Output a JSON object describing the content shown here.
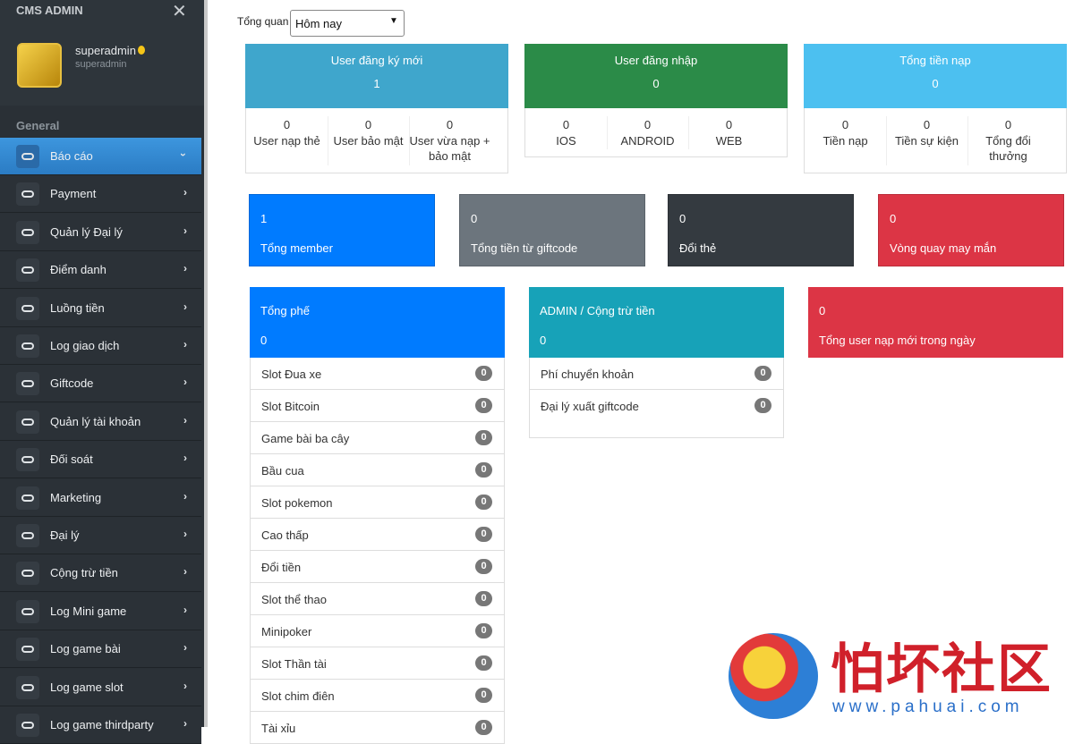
{
  "sidebar": {
    "brand": "CMS ADMIN",
    "user": {
      "name": "superadmin",
      "role": "superadmin"
    },
    "section": "General",
    "menu": [
      "Báo cáo",
      "Payment",
      "Quản lý Đại lý",
      "Điểm danh",
      "Luồng tiền",
      "Log giao dịch",
      "Giftcode",
      "Quản lý tài khoản",
      "Đối soát",
      "Marketing",
      "Đại lý",
      "Cộng trừ tiền",
      "Log Mini game",
      "Log game bài",
      "Log game slot",
      "Log game thirdparty"
    ]
  },
  "filter": {
    "label": "Tổng quan",
    "selected": "Hôm nay"
  },
  "stat_cards": [
    {
      "title": "User đăng ký mới",
      "value": 1,
      "color": "#3fa6cc",
      "stats": [
        {
          "value": 0,
          "label": "User nạp thẻ"
        },
        {
          "value": 0,
          "label": "User bảo mật"
        },
        {
          "value": 0,
          "label": "User vừa nạp + bảo mật"
        }
      ]
    },
    {
      "title": "User đăng nhập",
      "value": 0,
      "color": "#2b8b48",
      "stats": [
        {
          "value": 0,
          "label": "IOS"
        },
        {
          "value": 0,
          "label": "ANDROID"
        },
        {
          "value": 0,
          "label": "WEB"
        }
      ]
    },
    {
      "title": "Tổng tiền nạp",
      "value": 0,
      "color": "#4cc0f0",
      "stats": [
        {
          "value": 0,
          "label": "Tiền nạp"
        },
        {
          "value": 0,
          "label": "Tiền sự kiện"
        },
        {
          "value": 0,
          "label": "Tổng đổi thưởng"
        }
      ]
    }
  ],
  "summary_boxes": [
    {
      "value": 1,
      "label": "Tổng member",
      "color": "#007bff"
    },
    {
      "value": 0,
      "label": "Tổng tiền từ giftcode",
      "color": "#6c757d"
    },
    {
      "value": 0,
      "label": "Đổi thẻ",
      "color": "#343a40"
    },
    {
      "value": 0,
      "label": "Vòng quay may mắn",
      "color": "#dc3545"
    }
  ],
  "panels": [
    {
      "title": "Tổng phế",
      "value": 0,
      "color": "#007bff",
      "items": [
        {
          "label": "Slot Đua xe",
          "count": 0
        },
        {
          "label": "Slot Bitcoin",
          "count": 0
        },
        {
          "label": "Game bài ba cây",
          "count": 0
        },
        {
          "label": "Bầu cua",
          "count": 0
        },
        {
          "label": "Slot pokemon",
          "count": 0
        },
        {
          "label": "Cao thấp",
          "count": 0
        },
        {
          "label": "Đổi tiền",
          "count": 0
        },
        {
          "label": "Slot thể thao",
          "count": 0
        },
        {
          "label": "Minipoker",
          "count": 0
        },
        {
          "label": "Slot Thần tài",
          "count": 0
        },
        {
          "label": "Slot chim điên",
          "count": 0
        },
        {
          "label": "Tài xỉu",
          "count": 0
        }
      ]
    },
    {
      "title": "ADMIN / Cộng trừ tiền",
      "value": 0,
      "color": "#17a2b8",
      "items": [
        {
          "label": "Phí chuyển khoản",
          "count": 0
        },
        {
          "label": "Đại lý xuất giftcode",
          "count": 0
        }
      ]
    },
    {
      "title": "Tổng user nạp mới trong ngày",
      "value": 0,
      "color": "#dc3545"
    }
  ],
  "watermark": {
    "text": "怕坏社区",
    "url": "www.pahuai.com"
  }
}
